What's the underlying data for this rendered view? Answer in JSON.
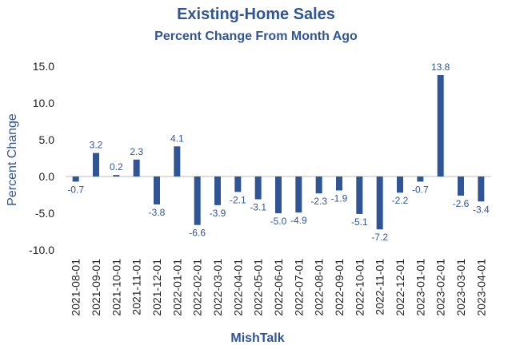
{
  "chart_data": {
    "type": "bar",
    "title": "Existing-Home Sales",
    "subtitle": "Percent Change From Month Ago",
    "xlabel": "MishTalk",
    "ylabel": "Percent Change",
    "ylim": [
      -10,
      15
    ],
    "yticks": [
      "15.0",
      "10.0",
      "5.0",
      "0.0",
      "-5.0",
      "-10.0"
    ],
    "ytick_values": [
      15,
      10,
      5,
      0,
      -5,
      -10
    ],
    "grid": false,
    "legend": "none",
    "bar_color": "#2f5597",
    "categories": [
      "2021-08-01",
      "2021-09-01",
      "2021-10-01",
      "2021-11-01",
      "2021-12-01",
      "2022-01-01",
      "2022-02-01",
      "2022-03-01",
      "2022-04-01",
      "2022-05-01",
      "2022-06-01",
      "2022-07-01",
      "2022-08-01",
      "2022-09-01",
      "2022-10-01",
      "2022-11-01",
      "2022-12-01",
      "2023-01-01",
      "2023-02-01",
      "2023-03-01",
      "2023-04-01"
    ],
    "values": [
      -0.7,
      3.2,
      0.2,
      2.3,
      -3.8,
      4.1,
      -6.6,
      -3.9,
      -2.1,
      -3.1,
      -5.0,
      -4.9,
      -2.3,
      -1.9,
      -5.1,
      -7.2,
      -2.2,
      -0.7,
      13.8,
      -2.6,
      -3.4
    ],
    "data_labels": [
      "-0.7",
      "3.2",
      "0.2",
      "2.3",
      "-3.8",
      "4.1",
      "-6.6",
      "-3.9",
      "-2.1",
      "-3.1",
      "-5.0",
      "-4.9",
      "-2.3",
      "-1.9",
      "-5.1",
      "-7.2",
      "-2.2",
      "-0.7",
      "13.8",
      "-2.6",
      "-3.4"
    ]
  }
}
